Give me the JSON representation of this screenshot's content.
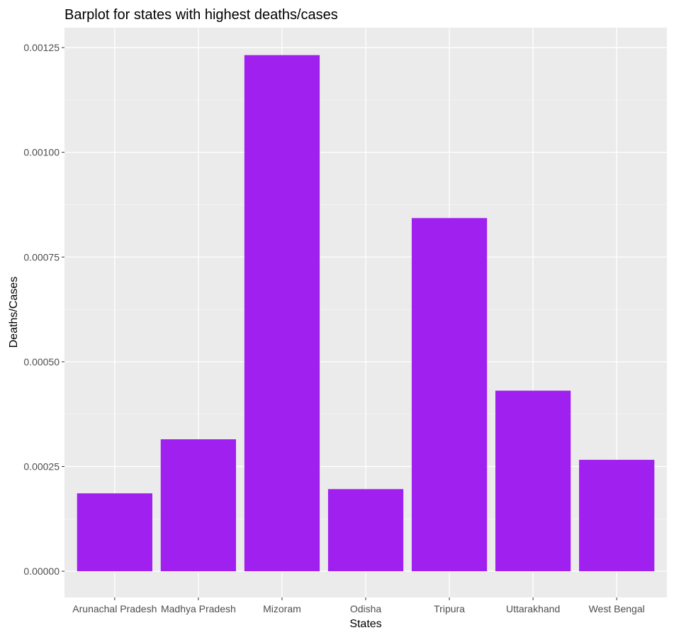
{
  "chart_data": {
    "type": "bar",
    "title": "Barplot for states with highest deaths/cases",
    "xlabel": "States",
    "ylabel": "Deaths/Cases",
    "categories": [
      "Arunachal Pradesh",
      "Madhya Pradesh",
      "Mizoram",
      "Odisha",
      "Tripura",
      "Uttarakhand",
      "West Bengal"
    ],
    "values": [
      0.000186,
      0.000315,
      0.001232,
      0.000196,
      0.000843,
      0.000431,
      0.000266
    ],
    "ylim": [
      -6.25e-05,
      0.0012975
    ],
    "yticks": [
      0,
      0.00025,
      0.0005,
      0.00075,
      0.001,
      0.00125
    ],
    "ytick_labels": [
      "0.00000",
      "0.00025",
      "0.00050",
      "0.00075",
      "0.00100",
      "0.00125"
    ],
    "grid": true,
    "legend": "none",
    "colors": {
      "bar": "#a020f0",
      "panel_background": "#ebebeb",
      "grid_major": "#ffffff",
      "grid_minor": "#f5f5f5"
    }
  }
}
